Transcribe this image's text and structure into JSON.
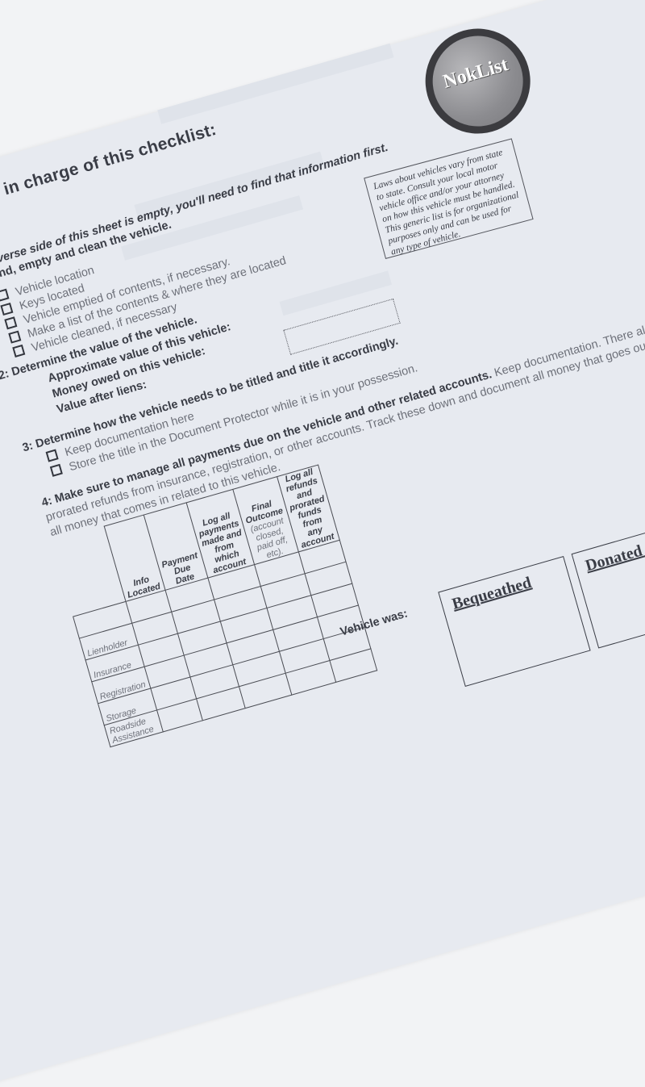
{
  "logo": {
    "text": "NokList"
  },
  "heading": "in charge of this checklist:",
  "reverse_note": "verse side of this sheet is empty, you'll need to find that information first.",
  "note_box": "Laws about vehicles vary from state to state.  Consult your local motor vehicle office and/or your attorney on how this vehicle must be handled.  This generic list is for organizational purposes only and can be used for any type of vehicle.",
  "step1": {
    "title": "nd, empty and clean the vehicle.",
    "items": [
      "Vehicle location",
      "Keys located",
      "Vehicle emptied of contents, if necessary.",
      "Make a list of the contents & where they are located",
      "Vehicle cleaned, if necessary"
    ]
  },
  "step2": {
    "title": "2:  Determine the value of the vehicle.",
    "fields": [
      "Approximate value of this vehicle:",
      "Money owed on this vehicle:",
      "Value after liens:"
    ]
  },
  "step3": {
    "title": "3:  Determine how the vehicle needs to be titled and title it accordingly.",
    "items": [
      "Keep documentation here",
      "Store the title in the Document Protector while it is in your possession."
    ]
  },
  "step4": {
    "title": "4:  Make sure to manage all payments due on the vehicle and other related accounts.",
    "text1": " Keep documentation.  There also may be",
    "text2": "prorated refunds from insurance, registration, or other accounts.  Track these down and document all money that goes out, and",
    "text3": "all money that comes in related to this vehicle."
  },
  "table": {
    "headers": [
      "Info Located",
      "Payment Due Date",
      "Log all payments made and from which account",
      "Final Outcome",
      "Log all refunds and prorated funds from any account"
    ],
    "final_outcome_note": "(account closed, paid off, etc).",
    "rows": [
      "",
      "Lienholder",
      "Insurance",
      "Registration",
      "Storage",
      "Roadside Assistance"
    ]
  },
  "disposition": {
    "label": "Vehicle was:",
    "options": [
      "Bequeathed",
      "Donated o"
    ]
  }
}
